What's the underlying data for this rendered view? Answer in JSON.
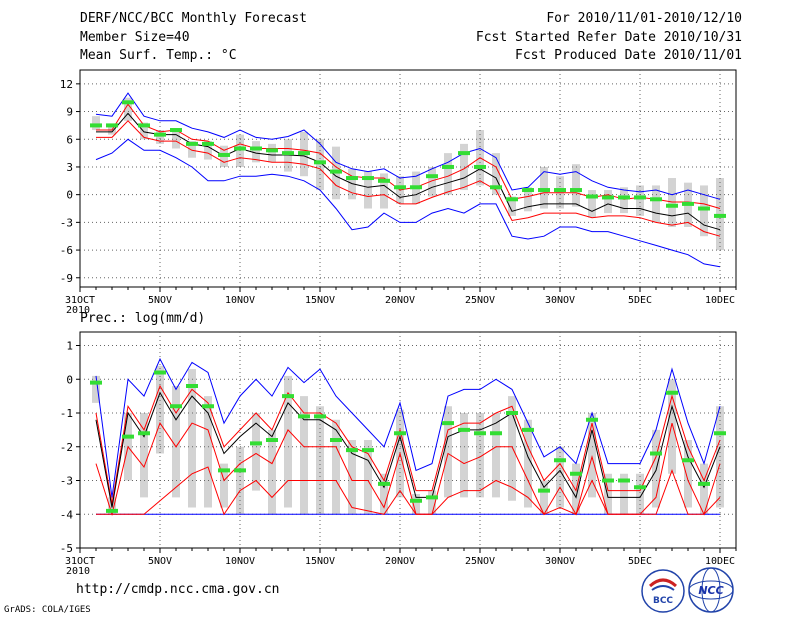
{
  "header": {
    "title": "DERF/NCC/BCC Monthly Forecast",
    "member_size": "Member Size=40",
    "variable": "Mean Surf. Temp.: °C",
    "period": "For 2010/11/01-2010/12/10",
    "started": "Fcst Started Refer Date 2010/10/31",
    "produced": "Fcst Produced Date 2010/11/01"
  },
  "footer": {
    "url": "http://cmdp.ncc.cma.gov.cn",
    "grads": "GrADS: COLA/IGES"
  },
  "logos": {
    "bcc": "BCC",
    "ncc": "NCC"
  },
  "colors": {
    "ensemble_max_min": "#0000ff",
    "spread": "#ff0000",
    "mean": "#000000",
    "median": "#33dd33",
    "box": "#d3d3d3",
    "grid": "#666666"
  },
  "chart_data": [
    {
      "type": "line",
      "title": "Mean Surf. Temp.: °C",
      "x_tick_labels": [
        "31OCT",
        "5NOV",
        "10NOV",
        "15NOV",
        "20NOV",
        "25NOV",
        "30NOV",
        "5DEC",
        "10DEC"
      ],
      "x_year_label": "2010",
      "x_day_offsets": [
        0,
        5,
        10,
        15,
        20,
        25,
        30,
        35,
        40
      ],
      "ylim": [
        -10,
        13.5
      ],
      "yticks": [
        -9,
        -6,
        -3,
        0,
        3,
        6,
        9,
        12
      ],
      "days": [
        1,
        2,
        3,
        4,
        5,
        6,
        7,
        8,
        9,
        10,
        11,
        12,
        13,
        14,
        15,
        16,
        17,
        18,
        19,
        20,
        21,
        22,
        23,
        24,
        25,
        26,
        27,
        28,
        29,
        30,
        31,
        32,
        33,
        34,
        35,
        36,
        37,
        38,
        39,
        40
      ],
      "series": [
        {
          "name": "max",
          "values": [
            8.7,
            8.5,
            11.0,
            8.5,
            8.0,
            8.0,
            7.2,
            6.8,
            6.2,
            7.0,
            6.2,
            6.0,
            6.3,
            7.0,
            5.5,
            3.5,
            2.8,
            2.5,
            2.8,
            1.8,
            2.0,
            2.8,
            3.5,
            4.5,
            5.0,
            4.0,
            0.5,
            0.8,
            2.5,
            2.2,
            2.5,
            1.5,
            0.8,
            0.5,
            0.3,
            0.5,
            0.0,
            0.5,
            0.0,
            -0.5
          ]
        },
        {
          "name": "upper",
          "values": [
            7.0,
            7.0,
            9.8,
            7.5,
            6.8,
            7.0,
            6.0,
            5.8,
            4.8,
            5.5,
            5.0,
            5.0,
            5.0,
            4.8,
            4.5,
            3.0,
            2.0,
            1.8,
            1.8,
            0.5,
            0.8,
            1.5,
            2.0,
            2.8,
            4.0,
            3.0,
            -0.5,
            -0.2,
            0.2,
            0.2,
            0.2,
            -0.3,
            0.0,
            -0.5,
            -0.3,
            -0.5,
            -0.8,
            -0.8,
            -1.0,
            -1.5
          ]
        },
        {
          "name": "mean",
          "values": [
            6.8,
            6.8,
            8.8,
            6.8,
            6.5,
            6.5,
            5.5,
            5.2,
            4.2,
            5.0,
            4.5,
            4.3,
            4.3,
            4.2,
            3.5,
            2.0,
            1.2,
            0.8,
            1.0,
            -0.3,
            0.0,
            0.8,
            1.3,
            1.8,
            2.8,
            1.8,
            -1.8,
            -1.3,
            -1.0,
            -1.0,
            -1.0,
            -1.8,
            -1.0,
            -1.5,
            -1.5,
            -2.0,
            -2.3,
            -2.0,
            -3.3,
            -3.8
          ]
        },
        {
          "name": "lower",
          "values": [
            6.2,
            6.2,
            8.0,
            6.2,
            5.8,
            5.8,
            4.8,
            4.5,
            3.5,
            4.0,
            3.8,
            3.5,
            3.5,
            3.3,
            2.8,
            1.0,
            0.2,
            -0.2,
            0.0,
            -1.0,
            -1.0,
            -0.3,
            0.3,
            0.8,
            1.5,
            0.5,
            -2.8,
            -2.5,
            -2.0,
            -2.0,
            -2.0,
            -2.5,
            -2.3,
            -2.3,
            -2.5,
            -3.0,
            -3.3,
            -3.0,
            -4.0,
            -4.5
          ]
        },
        {
          "name": "min",
          "values": [
            3.8,
            4.5,
            6.0,
            4.8,
            4.8,
            4.0,
            3.0,
            1.5,
            1.5,
            2.0,
            2.0,
            2.2,
            2.0,
            1.5,
            0.5,
            -1.5,
            -3.8,
            -3.5,
            -2.0,
            -3.0,
            -3.0,
            -2.0,
            -1.5,
            -2.0,
            -1.0,
            -1.0,
            -4.5,
            -4.8,
            -4.5,
            -3.5,
            -3.5,
            -4.0,
            -4.0,
            -4.5,
            -5.0,
            -5.5,
            -6.0,
            -6.5,
            -7.5,
            -7.8
          ]
        },
        {
          "name": "median",
          "values": [
            7.5,
            7.5,
            10.0,
            7.5,
            6.5,
            7.0,
            5.5,
            5.5,
            4.3,
            5.0,
            5.0,
            4.8,
            4.5,
            4.5,
            3.5,
            2.5,
            1.8,
            1.8,
            1.5,
            0.8,
            0.8,
            2.0,
            3.0,
            4.5,
            3.0,
            0.8,
            -0.5,
            0.5,
            0.5,
            0.5,
            0.5,
            -0.2,
            -0.3,
            -0.3,
            -0.3,
            -0.5,
            -1.2,
            -1.0,
            -1.5,
            -2.3
          ]
        },
        {
          "name": "box_top",
          "values": [
            8.5,
            7.5,
            10.5,
            7.8,
            7.0,
            6.8,
            5.8,
            5.8,
            5.3,
            6.5,
            5.8,
            5.5,
            6.0,
            6.8,
            6.0,
            5.2,
            2.8,
            2.5,
            2.3,
            2.0,
            2.5,
            3.0,
            4.5,
            5.5,
            7.0,
            4.5,
            -0.2,
            0.8,
            3.0,
            2.0,
            3.3,
            0.5,
            0.5,
            0.8,
            1.0,
            1.0,
            1.8,
            1.3,
            1.0,
            1.8
          ]
        },
        {
          "name": "box_bottom",
          "values": [
            7.0,
            6.5,
            8.0,
            6.0,
            5.5,
            5.0,
            4.0,
            3.8,
            3.0,
            3.0,
            3.5,
            3.5,
            2.5,
            2.0,
            0.5,
            -0.5,
            -0.5,
            -1.5,
            -1.5,
            -1.0,
            -1.0,
            -0.2,
            0.0,
            0.5,
            1.0,
            0.0,
            -2.3,
            -1.8,
            -1.5,
            -1.5,
            -1.3,
            -2.5,
            -2.0,
            -2.0,
            -2.3,
            -3.0,
            -3.5,
            -3.5,
            -4.5,
            -6.0
          ]
        }
      ]
    },
    {
      "type": "line",
      "title": "Prec.: log(mm/d)",
      "x_tick_labels": [
        "31OCT",
        "5NOV",
        "10NOV",
        "15NOV",
        "20NOV",
        "25NOV",
        "30NOV",
        "5DEC",
        "10DEC"
      ],
      "x_year_label": "2010",
      "x_day_offsets": [
        0,
        5,
        10,
        15,
        20,
        25,
        30,
        35,
        40
      ],
      "ylim": [
        -5,
        1.4
      ],
      "yticks": [
        -5,
        -4,
        -3,
        -2,
        -1,
        0,
        1
      ],
      "days": [
        1,
        2,
        3,
        4,
        5,
        6,
        7,
        8,
        9,
        10,
        11,
        12,
        13,
        14,
        15,
        16,
        17,
        18,
        19,
        20,
        21,
        22,
        23,
        24,
        25,
        26,
        27,
        28,
        29,
        30,
        31,
        32,
        33,
        34,
        35,
        36,
        37,
        38,
        39,
        40
      ],
      "series": [
        {
          "name": "max",
          "values": [
            0.1,
            -3.5,
            0.0,
            -0.5,
            0.6,
            -0.3,
            0.5,
            0.2,
            -1.3,
            -0.5,
            0.0,
            -0.5,
            0.35,
            -0.1,
            0.3,
            -0.5,
            -1.0,
            -1.5,
            -2.0,
            -0.7,
            -2.7,
            -2.5,
            -0.5,
            -0.3,
            -0.3,
            0.0,
            -0.3,
            -1.3,
            -2.3,
            -2.0,
            -2.5,
            -1.0,
            -2.5,
            -2.5,
            -2.5,
            -1.5,
            0.3,
            -1.3,
            -2.5,
            -0.8
          ]
        },
        {
          "name": "upper",
          "values": [
            -1.0,
            -3.7,
            -0.8,
            -1.5,
            -0.2,
            -1.0,
            -0.3,
            -0.7,
            -2.0,
            -1.5,
            -1.0,
            -1.5,
            -0.4,
            -1.0,
            -1.0,
            -1.3,
            -2.0,
            -2.2,
            -3.0,
            -1.5,
            -3.3,
            -3.3,
            -1.5,
            -1.3,
            -1.3,
            -1.0,
            -0.8,
            -2.0,
            -3.0,
            -2.5,
            -3.3,
            -1.3,
            -3.3,
            -3.3,
            -3.3,
            -2.3,
            -0.5,
            -2.0,
            -3.0,
            -1.8
          ]
        },
        {
          "name": "mean",
          "values": [
            -1.2,
            -3.8,
            -1.0,
            -1.7,
            -0.4,
            -1.2,
            -0.5,
            -1.0,
            -2.2,
            -1.7,
            -1.3,
            -1.7,
            -0.7,
            -1.2,
            -1.2,
            -1.5,
            -2.2,
            -2.4,
            -3.2,
            -1.7,
            -3.5,
            -3.5,
            -1.7,
            -1.5,
            -1.5,
            -1.3,
            -1.0,
            -2.3,
            -3.2,
            -2.7,
            -3.5,
            -1.5,
            -3.5,
            -3.5,
            -3.5,
            -2.7,
            -0.8,
            -2.3,
            -3.2,
            -2.0
          ]
        },
        {
          "name": "lower",
          "values": [
            -2.5,
            -4.0,
            -2.0,
            -2.6,
            -1.3,
            -2.0,
            -1.3,
            -1.5,
            -3.0,
            -2.5,
            -2.2,
            -2.5,
            -1.5,
            -2.0,
            -2.0,
            -2.0,
            -3.0,
            -3.0,
            -3.8,
            -2.2,
            -4.0,
            -4.0,
            -2.2,
            -2.5,
            -2.3,
            -2.0,
            -2.0,
            -3.0,
            -4.0,
            -3.2,
            -4.0,
            -2.3,
            -4.0,
            -4.0,
            -4.0,
            -3.5,
            -1.3,
            -3.0,
            -4.0,
            -2.5
          ]
        },
        {
          "name": "lowest",
          "values": [
            -4.0,
            -4.0,
            -4.0,
            -4.0,
            -3.6,
            -3.2,
            -2.8,
            -2.6,
            -4.0,
            -3.3,
            -3.0,
            -3.5,
            -3.0,
            -3.0,
            -3.0,
            -3.0,
            -3.8,
            -3.9,
            -4.0,
            -3.3,
            -4.0,
            -4.0,
            -3.5,
            -3.3,
            -3.3,
            -3.0,
            -3.2,
            -3.5,
            -4.0,
            -3.8,
            -4.0,
            -3.0,
            -4.0,
            -4.0,
            -4.0,
            -4.0,
            -2.7,
            -4.0,
            -4.0,
            -3.5
          ]
        },
        {
          "name": "min",
          "values": [
            -4,
            -4,
            -4,
            -4,
            -4,
            -4,
            -4,
            -4,
            -4,
            -4,
            -4,
            -4,
            -4,
            -4,
            -4,
            -4,
            -4,
            -4,
            -4,
            -4,
            -4,
            -4,
            -4,
            -4,
            -4,
            -4,
            -4,
            -4,
            -4,
            -4,
            -4,
            -4,
            -4,
            -4,
            -4,
            -4,
            -4,
            -4,
            -4,
            -4
          ]
        },
        {
          "name": "median",
          "values": [
            -0.1,
            -3.9,
            -1.7,
            -1.6,
            0.2,
            -0.8,
            -0.2,
            -0.8,
            -2.7,
            -2.7,
            -1.9,
            -1.8,
            -0.5,
            -1.1,
            -1.1,
            -1.8,
            -2.1,
            -2.1,
            -3.1,
            -1.6,
            -3.6,
            -3.5,
            -1.3,
            -1.5,
            -1.6,
            -1.6,
            -1.0,
            -1.5,
            -3.3,
            -2.4,
            -2.8,
            -1.2,
            -3.0,
            -3.0,
            -3.2,
            -2.2,
            -0.4,
            -2.4,
            -3.1,
            -1.6
          ]
        },
        {
          "name": "box_top",
          "values": [
            0.1,
            -3.5,
            -1.0,
            -1.0,
            0.4,
            -0.2,
            0.3,
            -0.5,
            -2.5,
            -2.0,
            -1.0,
            -1.5,
            0.1,
            -0.5,
            -0.8,
            -1.2,
            -1.8,
            -1.8,
            -2.8,
            -0.9,
            -3.4,
            -3.3,
            -0.8,
            -1.0,
            -1.0,
            -1.0,
            -0.5,
            -1.2,
            -3.0,
            -2.0,
            -2.5,
            -1.0,
            -2.8,
            -2.8,
            -2.8,
            -1.5,
            0.0,
            -1.8,
            -2.5,
            -0.8
          ]
        },
        {
          "name": "box_bottom",
          "values": [
            -0.7,
            -4.0,
            -3.0,
            -3.5,
            -2.2,
            -3.5,
            -3.8,
            -3.8,
            -3.8,
            -4.0,
            -3.3,
            -4.0,
            -3.8,
            -4.0,
            -4.0,
            -4.0,
            -4.0,
            -4.0,
            -4.0,
            -3.5,
            -4.0,
            -4.0,
            -3.5,
            -3.5,
            -3.5,
            -3.5,
            -3.6,
            -3.8,
            -4.0,
            -3.8,
            -4.0,
            -3.5,
            -4.0,
            -4.0,
            -4.0,
            -3.8,
            -2.8,
            -3.8,
            -4.0,
            -3.8
          ]
        }
      ]
    }
  ]
}
